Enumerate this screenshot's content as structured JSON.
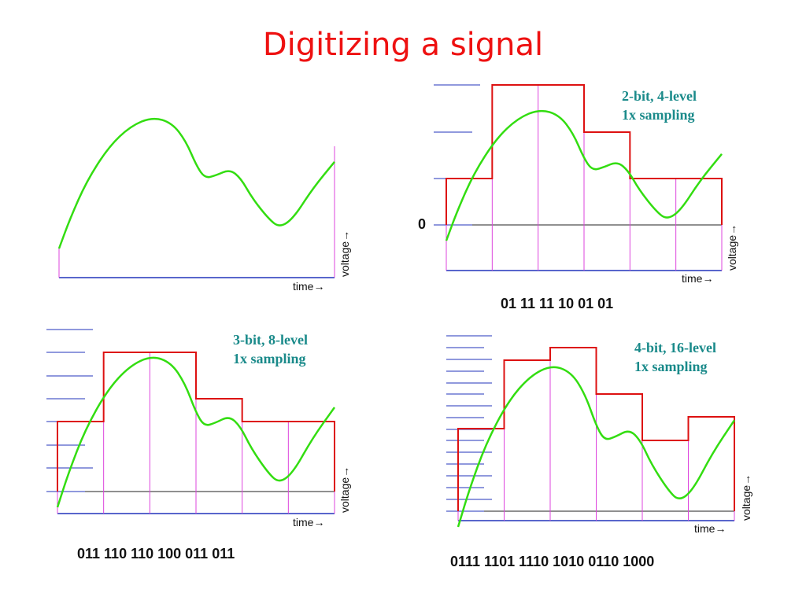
{
  "title": "Digitizing a signal",
  "axis": {
    "time_label": "time→",
    "voltage_label": "voltage→",
    "zero_label": "0"
  },
  "colors": {
    "signal": "#33dd11",
    "quantized": "#dd1111",
    "sample_lines": "#dd44dd",
    "level_lines": "#2233bb",
    "axis_x": "#2233bb",
    "title": "#ee1111",
    "caption": "#1a8a8a"
  },
  "panels": [
    {
      "id": "original",
      "caption_lines": [],
      "code": ""
    },
    {
      "id": "two-bit",
      "caption_lines": [
        "2-bit, 4-level",
        "1x sampling"
      ],
      "code": "01 11 11 10 01 01",
      "bits": 2,
      "levels": 4,
      "samples": [
        "01",
        "11",
        "11",
        "10",
        "01",
        "01"
      ]
    },
    {
      "id": "three-bit",
      "caption_lines": [
        "3-bit, 8-level",
        "1x sampling"
      ],
      "code": "011 110 110 100 011 011",
      "bits": 3,
      "levels": 8,
      "samples": [
        "011",
        "110",
        "110",
        "100",
        "011",
        "011"
      ]
    },
    {
      "id": "four-bit",
      "caption_lines": [
        "4-bit, 16-level",
        "1x sampling"
      ],
      "code": "0111 1101 1110 1010 0110 1000",
      "bits": 4,
      "levels": 16,
      "samples": [
        "0111",
        "1101",
        "1110",
        "1010",
        "0110",
        "1000"
      ]
    }
  ]
}
